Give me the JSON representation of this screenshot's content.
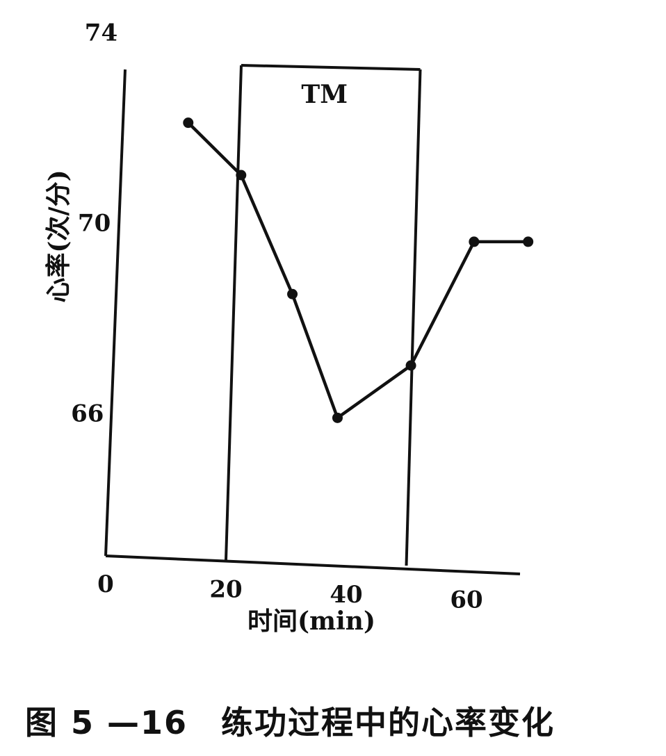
{
  "chart_data": {
    "type": "line",
    "title": "",
    "xlabel": "时间(min)",
    "ylabel": "心率(次/分)",
    "xlim": [
      0,
      70
    ],
    "ylim": [
      63,
      74
    ],
    "x_ticks": [
      {
        "value": 0,
        "label": "0"
      },
      {
        "value": 20,
        "label": "20"
      },
      {
        "value": 40,
        "label": "40"
      },
      {
        "value": 60,
        "label": "60"
      }
    ],
    "y_ticks": [
      {
        "value": 66,
        "label": "66"
      },
      {
        "value": 70,
        "label": "70"
      },
      {
        "value": 74,
        "label": "74"
      }
    ],
    "series": [
      {
        "name": "",
        "x": [
          12,
          21,
          30,
          38,
          50,
          60,
          69
        ],
        "y": [
          72.1,
          71.0,
          68.5,
          65.9,
          67.0,
          69.6,
          69.6
        ]
      }
    ],
    "shaded_region": {
      "label": "TM",
      "x_start": 20,
      "x_end": 50
    },
    "grid": false,
    "legend": "none"
  },
  "caption": "图 5 —16　练功过程中的心率变化",
  "colors": {
    "ink": "#111111",
    "background": "#ffffff"
  }
}
